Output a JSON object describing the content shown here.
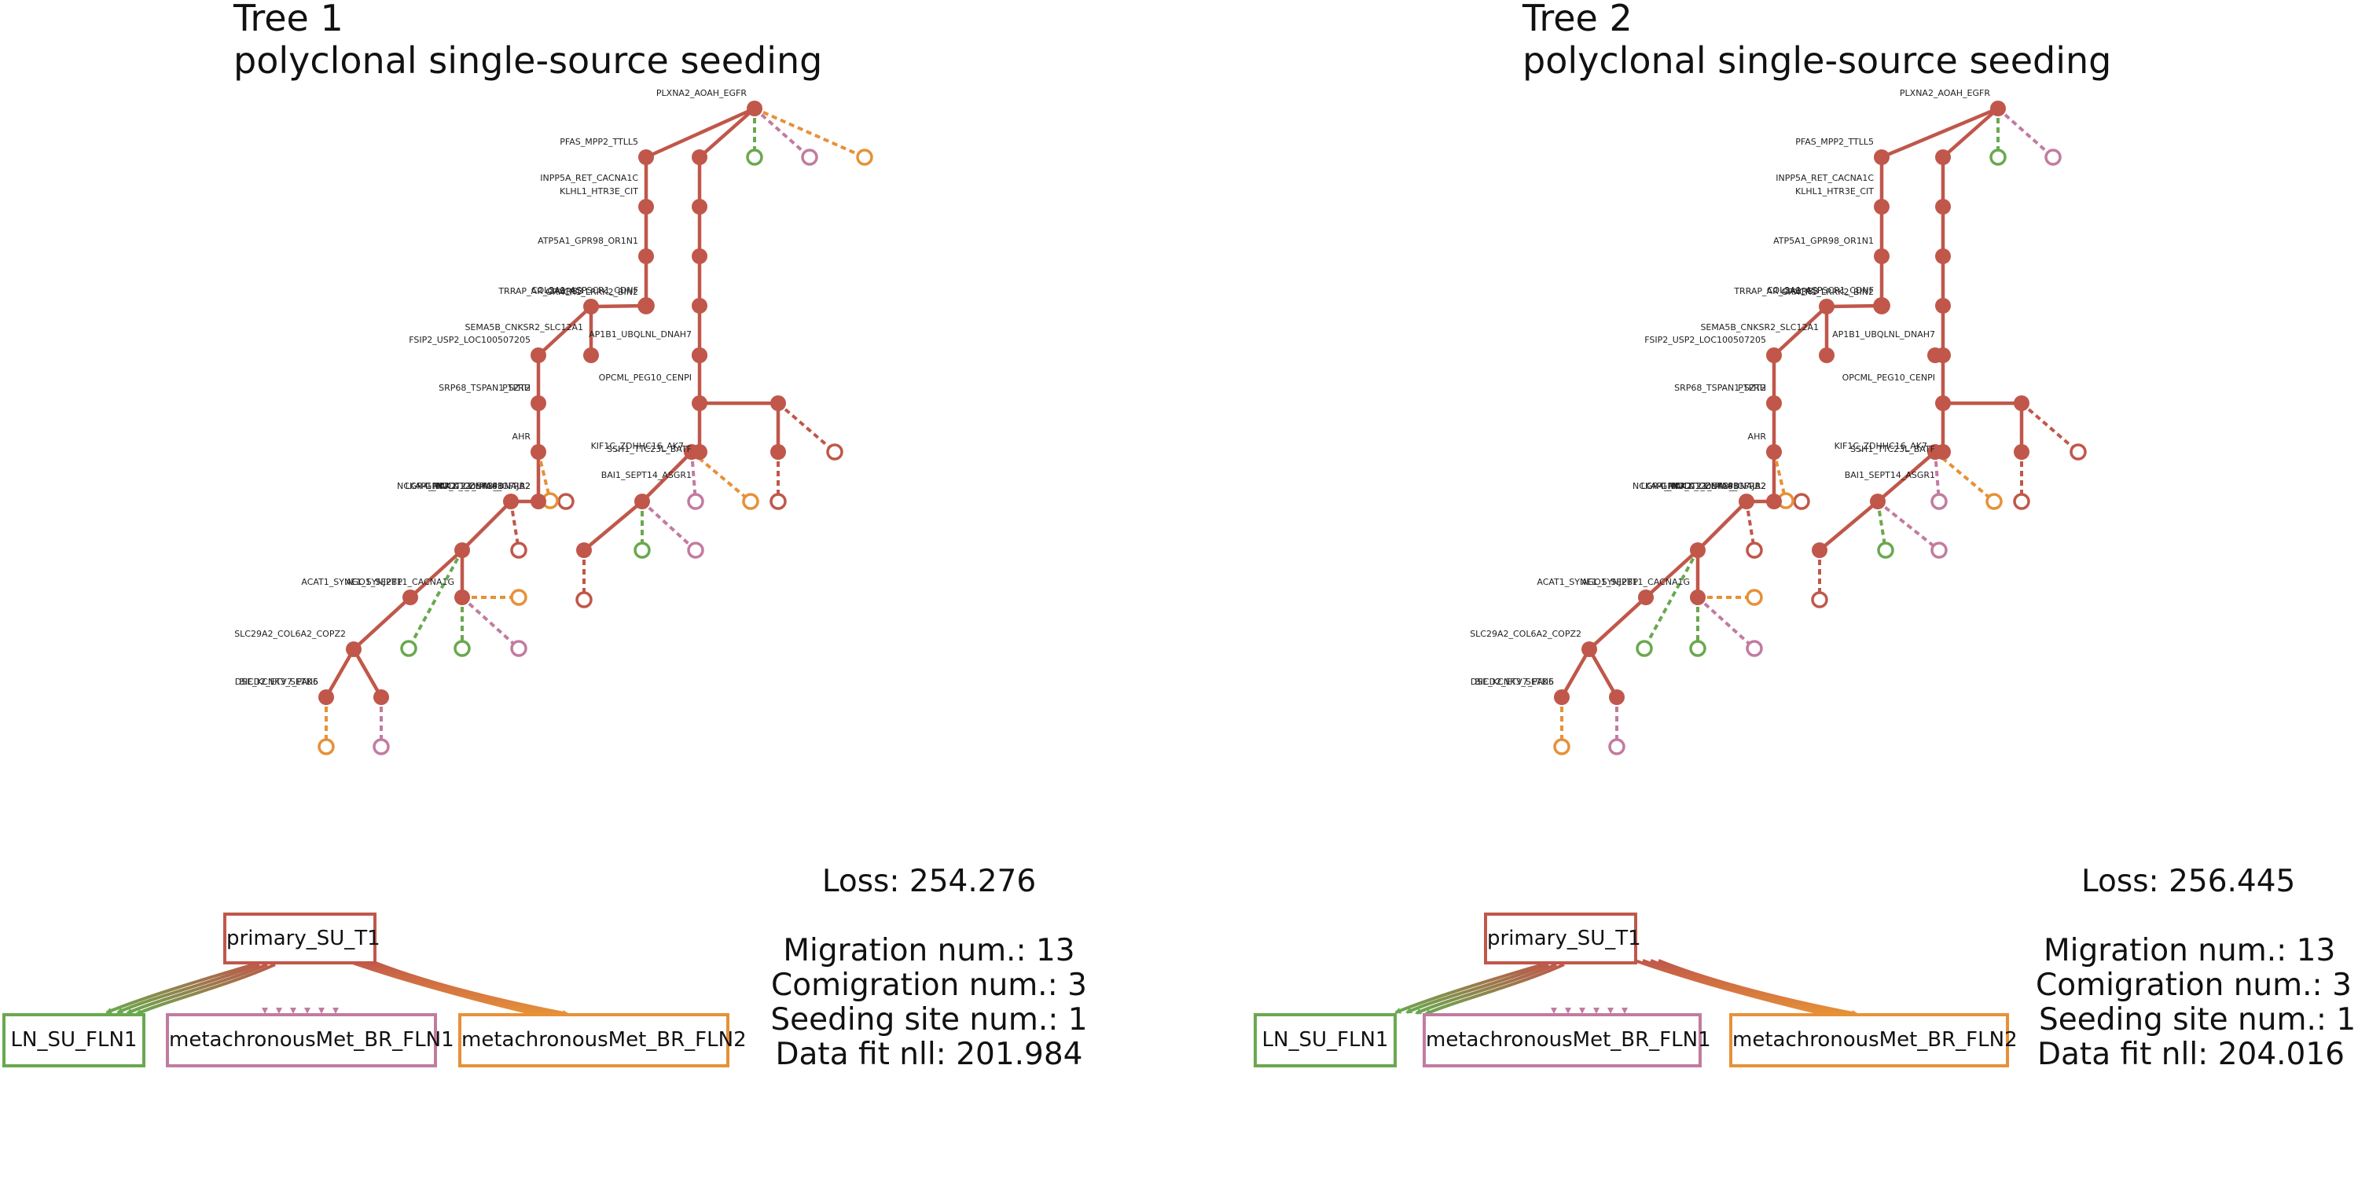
{
  "colors": {
    "primary": "#c0574a",
    "ln": "#6aa84f",
    "br1": "#c27ba0",
    "br2": "#e69138"
  },
  "panels": [
    {
      "title_line1": "Tree 1",
      "title_line2": "polyclonal single-source seeding",
      "loss": "Loss: 254.276",
      "migration": "Migration num.: 13",
      "comigration": "Comigration num.: 3",
      "seeding": "Seeding site num.: 1",
      "datafit": "Data fit nll: 201.984",
      "nodes": {
        "primary": "primary_SU_T1",
        "ln": "LN_SU_FLN1",
        "br1": "metachronousMet_BR_FLN1",
        "br2": "metachronousMet_BR_FLN2"
      }
    },
    {
      "title_line1": "Tree 2",
      "title_line2": "polyclonal single-source seeding",
      "loss": "Loss: 256.445",
      "migration": "Migration num.: 13",
      "comigration": "Comigration num.: 3",
      "seeding": "Seeding site num.: 1",
      "datafit": "Data fit nll: 204.016",
      "nodes": {
        "primary": "primary_SU_T1",
        "ln": "LN_SU_FLN1",
        "br1": "metachronousMet_BR_FLN1",
        "br2": "metachronousMet_BR_FLN2"
      }
    }
  ],
  "tree_labels": [
    "PLXNA2_AOAH_EGFR",
    "PFAS_MPP2_TTLL5",
    "INPP5A_RET_CACNA1C",
    "KLHL1_HTR3E_CIT",
    "ATP5A1_GPR98_OR1N1",
    "COL3A1_ASPSCR1_CDNF",
    "GRXCR1_LRRK2_BIN2",
    "TRRAP_AR_GABRB3",
    "SEMA5B_CNKSR2_SLC12A1",
    "AP1B1_UBQLNL_DNAH7",
    "FSIP2_USP2_LOC100507205",
    "SRP68_TSPAN1_SZT2",
    "OPCML_PEG10_CENPI",
    "PTPRH",
    "BAI1_SEPT14_ASGR1",
    "AHR",
    "SSH1_TTC23L_BATF",
    "PNCK_COL4A6_GFRA2",
    "KIF1C_ZDHHC16_AK7",
    "GRK7_C12orf43_DNAJB2",
    "LGR4_NKX2-1_ZNF148",
    "NCKAP1_NUDT21_SYCP1",
    "ACAT1_SYNE1_SYNJ2BP",
    "AGO1_SEPT11_CACNA1G",
    "SLC29A2_COL6A2_COPZ2",
    "DSE_KCNK3_SETD5",
    "BICD2_ETV7_PAK6"
  ]
}
